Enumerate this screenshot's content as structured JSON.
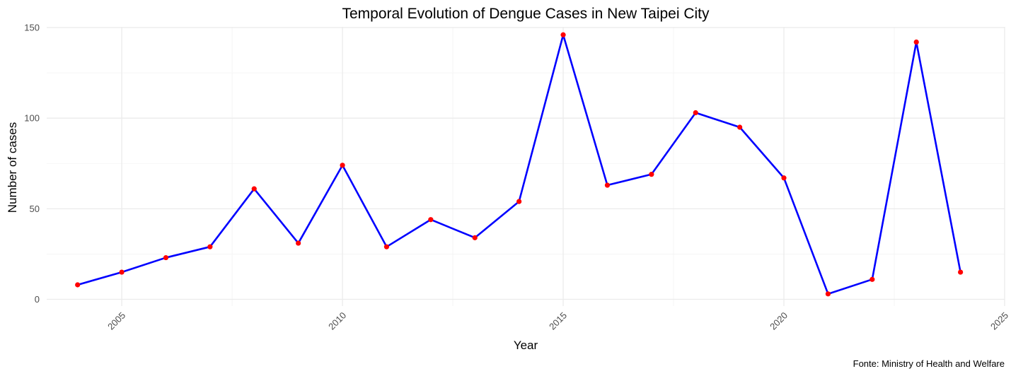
{
  "chart_data": {
    "type": "line",
    "title": "Temporal Evolution of Dengue Cases in New Taipei City",
    "xlabel": "Year",
    "ylabel": "Number of cases",
    "caption": "Fonte: Ministry of Health and Welfare",
    "xlim": [
      2003.3,
      2025
    ],
    "ylim": [
      -3.7,
      150.4
    ],
    "x_ticks": [
      2005,
      2010,
      2015,
      2020,
      2025
    ],
    "x_tick_labels": [
      "2005",
      "2010",
      "2015",
      "2020",
      "2025"
    ],
    "y_ticks": [
      0,
      50,
      100,
      150
    ],
    "y_tick_labels": [
      "0",
      "50",
      "100",
      "150"
    ],
    "x_minor_ticks": [
      2007.5,
      2012.5,
      2017.5,
      2022.5
    ],
    "y_minor_ticks": [
      25,
      75,
      125
    ],
    "grid": true,
    "legend": "none",
    "line_color": "#0000ff",
    "point_color": "#ff0000",
    "series": [
      {
        "x": [
          2004,
          2005,
          2006,
          2007,
          2008,
          2009,
          2010,
          2011,
          2012,
          2013,
          2014,
          2015,
          2016,
          2017,
          2018,
          2019,
          2020,
          2021,
          2022,
          2023,
          2024
        ],
        "values": [
          8,
          15,
          23,
          29,
          61,
          31,
          74,
          29,
          44,
          34,
          54,
          146,
          63,
          69,
          103,
          95,
          67,
          3,
          11,
          142,
          15
        ]
      }
    ]
  }
}
